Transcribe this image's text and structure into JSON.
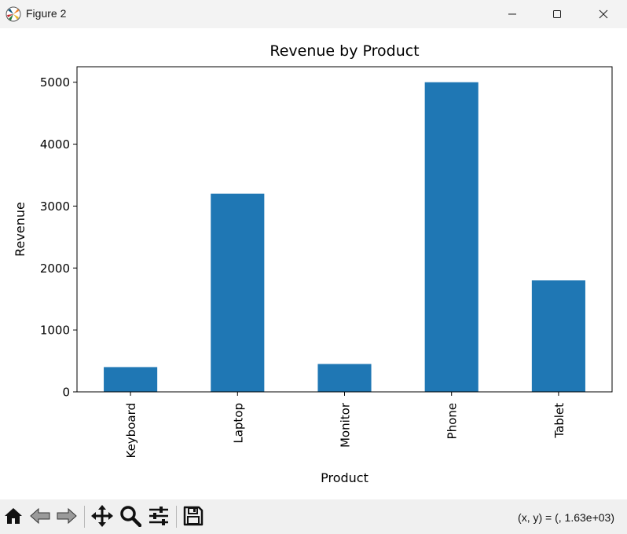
{
  "window": {
    "title": "Figure 2",
    "icons": [
      "matplotlib-icon",
      "minimize-icon",
      "maximize-icon",
      "close-icon"
    ]
  },
  "chart_data": {
    "type": "bar",
    "title": "Revenue by Product",
    "xlabel": "Product",
    "ylabel": "Revenue",
    "categories": [
      "Keyboard",
      "Laptop",
      "Monitor",
      "Phone",
      "Tablet"
    ],
    "values": [
      400,
      3200,
      450,
      5000,
      1800
    ],
    "ylim": [
      0,
      5250
    ],
    "yticks": [
      0,
      1000,
      2000,
      3000,
      4000,
      5000
    ],
    "bar_color": "#1f77b4",
    "grid": false,
    "legend": "none"
  },
  "toolbar": {
    "buttons": [
      "home-icon",
      "back-icon",
      "forward-icon",
      "pan-icon",
      "zoom-icon",
      "configure-icon",
      "save-icon"
    ],
    "coordinates": "(x, y) = (, 1.63e+03)"
  }
}
